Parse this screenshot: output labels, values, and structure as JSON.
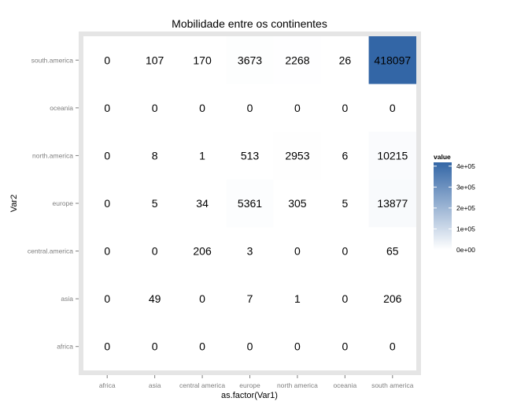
{
  "chart_data": {
    "type": "heatmap",
    "title": "Mobilidade entre os continentes",
    "xlabel": "as.factor(Var1)",
    "ylabel": "Var2",
    "x_categories": [
      "africa",
      "asia",
      "central america",
      "europe",
      "north america",
      "oceania",
      "south america"
    ],
    "y_categories": [
      "africa",
      "asia",
      "central.america",
      "europe",
      "north.america",
      "oceania",
      "south.america"
    ],
    "values": [
      [
        0,
        0,
        0,
        0,
        0,
        0,
        0
      ],
      [
        0,
        49,
        0,
        7,
        1,
        0,
        206
      ],
      [
        0,
        0,
        206,
        3,
        0,
        0,
        65
      ],
      [
        0,
        5,
        34,
        5361,
        305,
        5,
        13877
      ],
      [
        0,
        8,
        1,
        513,
        2953,
        6,
        10215
      ],
      [
        0,
        0,
        0,
        0,
        0,
        0,
        0
      ],
      [
        0,
        107,
        170,
        3673,
        2268,
        26,
        418097
      ]
    ],
    "color_scale": {
      "low": "#ffffff",
      "high": "#3366a6",
      "min": 0,
      "max": 418097
    },
    "legend": {
      "title": "value",
      "labels": [
        "4e+05",
        "3e+05",
        "2e+05",
        "1e+05",
        "0e+00"
      ],
      "breaks": [
        400000,
        300000,
        200000,
        100000,
        0
      ],
      "position": "right"
    },
    "panel_border_color": "#e5e5e5",
    "panel_background": "#ffffff",
    "grid": false
  }
}
